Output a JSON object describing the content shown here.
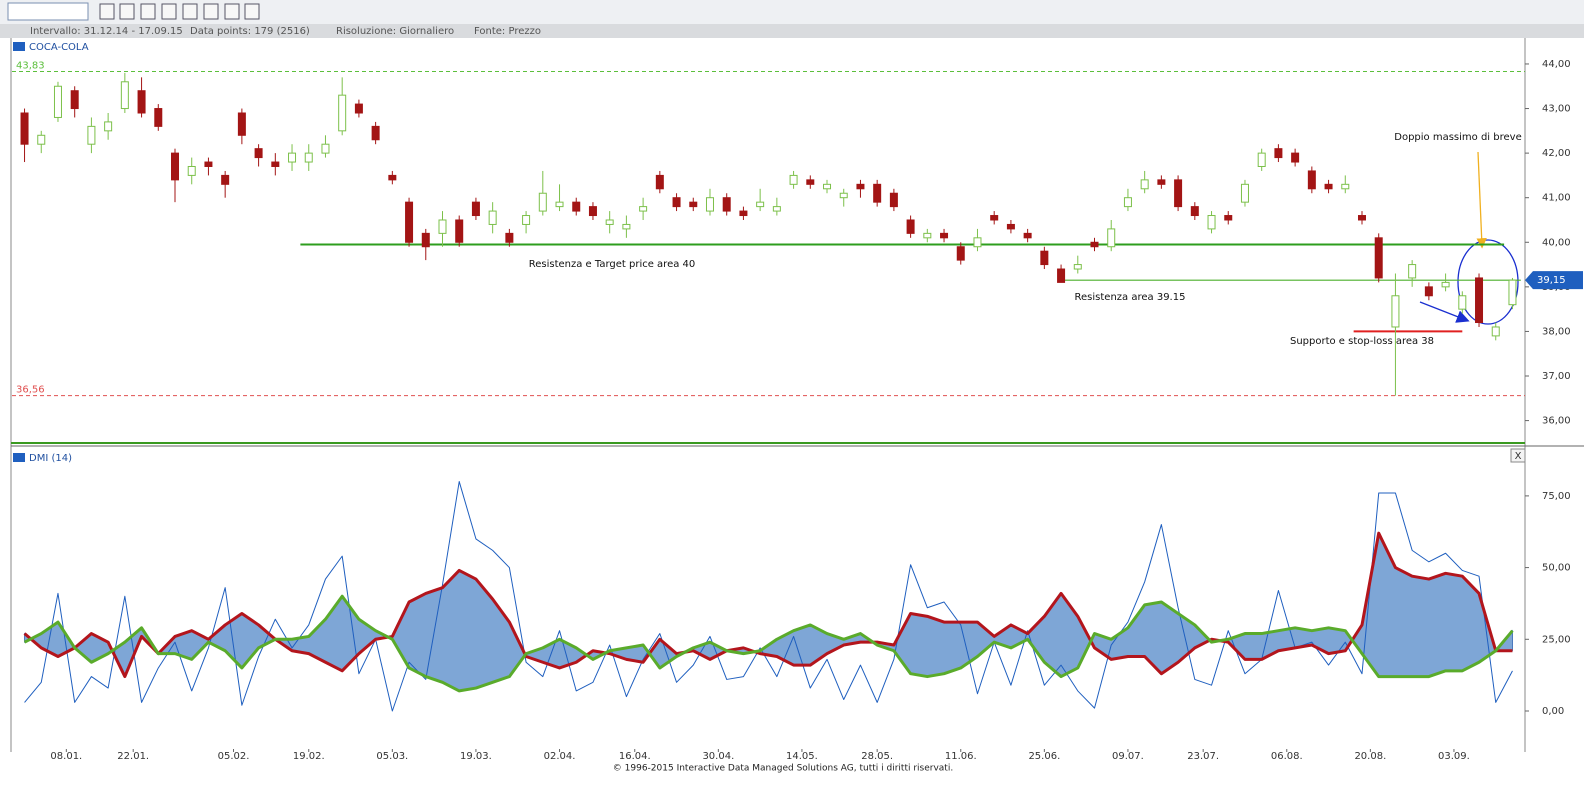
{
  "toolbar": {
    "info": [
      "Intervallo: 31.12.14 - 17.09.15",
      "Data points: 179 (2516)",
      "Risoluzione: Giornaliero",
      "Fonte: Prezzo"
    ]
  },
  "chart_data": [
    {
      "type": "candlestick",
      "legend": "COCA-COLA",
      "up_color": "#7cc04a",
      "down_color": "#a31515",
      "xlim": [
        -1.5,
        179.5
      ],
      "ylim": [
        35.43,
        44.56
      ],
      "yticks": [
        {
          "value": 36,
          "label": "36,00"
        },
        {
          "value": 37,
          "label": "37,00"
        },
        {
          "value": 38,
          "label": "38,00"
        },
        {
          "value": 39,
          "label": "39,00"
        },
        {
          "value": 40,
          "label": "40,00"
        },
        {
          "value": 41,
          "label": "41,00"
        },
        {
          "value": 42,
          "label": "42,00"
        },
        {
          "value": 43,
          "label": "43,00"
        },
        {
          "value": 44,
          "label": "44,00"
        }
      ],
      "x": [
        0,
        2,
        4,
        6,
        8,
        10,
        12,
        14,
        16,
        18,
        20,
        22,
        24,
        26,
        28,
        30,
        32,
        34,
        36,
        38,
        40,
        42,
        44,
        46,
        48,
        50,
        52,
        54,
        56,
        58,
        60,
        62,
        64,
        66,
        68,
        70,
        72,
        74,
        76,
        78,
        80,
        82,
        84,
        86,
        88,
        90,
        92,
        94,
        96,
        98,
        100,
        102,
        104,
        106,
        108,
        110,
        112,
        114,
        116,
        118,
        120,
        122,
        124,
        126,
        128,
        130,
        132,
        134,
        136,
        138,
        140,
        142,
        144,
        146,
        148,
        150,
        152,
        154,
        156,
        158,
        160,
        162,
        164,
        166,
        168,
        170,
        172,
        174,
        176,
        178
      ],
      "ohlc": [
        [
          42.9,
          43.0,
          41.8,
          42.2
        ],
        [
          42.2,
          42.5,
          42.0,
          42.4
        ],
        [
          42.8,
          43.6,
          42.7,
          43.5
        ],
        [
          43.4,
          43.5,
          42.8,
          43.0
        ],
        [
          42.2,
          42.8,
          42.0,
          42.6
        ],
        [
          42.5,
          42.9,
          42.3,
          42.7
        ],
        [
          43.0,
          43.8,
          42.9,
          43.6
        ],
        [
          43.4,
          43.7,
          42.8,
          42.9
        ],
        [
          43.0,
          43.1,
          42.5,
          42.6
        ],
        [
          42.0,
          42.1,
          40.9,
          41.4
        ],
        [
          41.5,
          41.9,
          41.3,
          41.7
        ],
        [
          41.8,
          41.9,
          41.5,
          41.7
        ],
        [
          41.5,
          41.6,
          41.0,
          41.3
        ],
        [
          42.9,
          43.0,
          42.2,
          42.4
        ],
        [
          42.1,
          42.2,
          41.7,
          41.9
        ],
        [
          41.8,
          42.0,
          41.5,
          41.7
        ],
        [
          41.8,
          42.2,
          41.6,
          42.0
        ],
        [
          41.8,
          42.2,
          41.6,
          42.0
        ],
        [
          42.0,
          42.4,
          41.9,
          42.2
        ],
        [
          42.5,
          43.7,
          42.4,
          43.3
        ],
        [
          43.1,
          43.2,
          42.8,
          42.9
        ],
        [
          42.6,
          42.7,
          42.2,
          42.3
        ],
        [
          41.5,
          41.6,
          41.3,
          41.4
        ],
        [
          40.9,
          41.0,
          39.9,
          40.0
        ],
        [
          40.2,
          40.3,
          39.6,
          39.9
        ],
        [
          40.2,
          40.7,
          39.9,
          40.5
        ],
        [
          40.5,
          40.6,
          39.9,
          40.0
        ],
        [
          40.9,
          41.0,
          40.5,
          40.6
        ],
        [
          40.4,
          40.9,
          40.2,
          40.7
        ],
        [
          40.2,
          40.3,
          39.9,
          40.0
        ],
        [
          40.4,
          40.7,
          40.2,
          40.6
        ],
        [
          40.7,
          41.6,
          40.6,
          41.1
        ],
        [
          40.8,
          41.3,
          40.7,
          40.9
        ],
        [
          40.9,
          41.0,
          40.6,
          40.7
        ],
        [
          40.8,
          40.9,
          40.5,
          40.6
        ],
        [
          40.4,
          40.7,
          40.2,
          40.5
        ],
        [
          40.3,
          40.6,
          40.1,
          40.4
        ],
        [
          40.7,
          41.0,
          40.5,
          40.8
        ],
        [
          41.5,
          41.6,
          41.1,
          41.2
        ],
        [
          41.0,
          41.1,
          40.7,
          40.8
        ],
        [
          40.9,
          41.0,
          40.7,
          40.8
        ],
        [
          40.7,
          41.2,
          40.6,
          41.0
        ],
        [
          41.0,
          41.1,
          40.6,
          40.7
        ],
        [
          40.7,
          40.8,
          40.5,
          40.6
        ],
        [
          40.8,
          41.2,
          40.7,
          40.9
        ],
        [
          40.7,
          41.0,
          40.6,
          40.8
        ],
        [
          41.3,
          41.6,
          41.2,
          41.5
        ],
        [
          41.4,
          41.5,
          41.2,
          41.3
        ],
        [
          41.2,
          41.4,
          41.1,
          41.3
        ],
        [
          41.0,
          41.2,
          40.8,
          41.1
        ],
        [
          41.3,
          41.4,
          41.0,
          41.2
        ],
        [
          41.3,
          41.4,
          40.8,
          40.9
        ],
        [
          41.1,
          41.2,
          40.7,
          40.8
        ],
        [
          40.5,
          40.6,
          40.1,
          40.2
        ],
        [
          40.1,
          40.3,
          40.0,
          40.2
        ],
        [
          40.2,
          40.3,
          40.0,
          40.1
        ],
        [
          39.9,
          40.0,
          39.5,
          39.6
        ],
        [
          39.9,
          40.3,
          39.8,
          40.1
        ],
        [
          40.6,
          40.7,
          40.4,
          40.5
        ],
        [
          40.4,
          40.5,
          40.2,
          40.3
        ],
        [
          40.2,
          40.3,
          40.0,
          40.1
        ],
        [
          39.8,
          39.9,
          39.4,
          39.5
        ],
        [
          39.4,
          39.5,
          39.1,
          39.1
        ],
        [
          39.4,
          39.7,
          39.3,
          39.5
        ],
        [
          40.0,
          40.1,
          39.8,
          39.9
        ],
        [
          39.9,
          40.5,
          39.8,
          40.3
        ],
        [
          40.8,
          41.2,
          40.7,
          41.0
        ],
        [
          41.2,
          41.6,
          41.1,
          41.4
        ],
        [
          41.4,
          41.5,
          41.2,
          41.3
        ],
        [
          41.4,
          41.5,
          40.7,
          40.8
        ],
        [
          40.8,
          40.9,
          40.5,
          40.6
        ],
        [
          40.3,
          40.7,
          40.2,
          40.6
        ],
        [
          40.6,
          40.7,
          40.4,
          40.5
        ],
        [
          40.9,
          41.4,
          40.8,
          41.3
        ],
        [
          41.7,
          42.1,
          41.6,
          42.0
        ],
        [
          42.1,
          42.2,
          41.8,
          41.9
        ],
        [
          42.0,
          42.1,
          41.7,
          41.8
        ],
        [
          41.6,
          41.7,
          41.1,
          41.2
        ],
        [
          41.3,
          41.4,
          41.1,
          41.2
        ],
        [
          41.2,
          41.5,
          41.1,
          41.3
        ],
        [
          40.6,
          40.7,
          40.4,
          40.5
        ],
        [
          40.1,
          40.2,
          39.1,
          39.2
        ],
        [
          38.1,
          39.3,
          36.56,
          38.8
        ],
        [
          39.2,
          39.6,
          39.0,
          39.5
        ],
        [
          39.0,
          39.1,
          38.7,
          38.8
        ],
        [
          39.0,
          39.3,
          38.9,
          39.1
        ],
        [
          38.5,
          38.9,
          38.4,
          38.8
        ],
        [
          39.2,
          39.3,
          38.1,
          38.2
        ],
        [
          37.9,
          38.2,
          37.8,
          38.1
        ],
        [
          38.6,
          39.2,
          38.5,
          39.15
        ]
      ],
      "reference_lines": [
        {
          "value": 43.83,
          "label": "43,83",
          "color": "#5cbf3c"
        },
        {
          "value": 36.56,
          "label": "36,56",
          "color": "#e05050"
        }
      ],
      "levels": [
        {
          "value": 39.95,
          "from": 33,
          "to": 177,
          "color": "#2e9e1e",
          "text": "Resistenza e Target price area 40"
        },
        {
          "value": 39.15,
          "from": 124,
          "to": 179,
          "color": "#4caf2c",
          "text": "Resistenza area 39.15"
        },
        {
          "value": 38.0,
          "from": 159,
          "to": 172,
          "color": "#e02020",
          "text": "Supporto e stop-loss area 38"
        }
      ],
      "annotation": "Doppio massimo di breve",
      "last_price": {
        "value": 39.15,
        "label": "39,15"
      }
    },
    {
      "type": "line",
      "legend": "DMI (14)",
      "close_label": "X",
      "fill_color": "#7ea6d6",
      "xlim": [
        -1.5,
        179.5
      ],
      "ylim": [
        -14.3,
        91.35
      ],
      "yticks": [
        {
          "value": 0,
          "label": "0,00"
        },
        {
          "value": 25,
          "label": "25,00"
        },
        {
          "value": 50,
          "label": "50,00"
        },
        {
          "value": 75,
          "label": "75,00"
        }
      ],
      "xticks": [
        {
          "value": 5,
          "label": "08.01."
        },
        {
          "value": 13,
          "label": "22.01."
        },
        {
          "value": 25,
          "label": "05.02."
        },
        {
          "value": 34,
          "label": "19.02."
        },
        {
          "value": 44,
          "label": "05.03."
        },
        {
          "value": 54,
          "label": "19.03."
        },
        {
          "value": 64,
          "label": "02.04."
        },
        {
          "value": 73,
          "label": "16.04."
        },
        {
          "value": 83,
          "label": "30.04."
        },
        {
          "value": 93,
          "label": "14.05."
        },
        {
          "value": 102,
          "label": "28.05."
        },
        {
          "value": 112,
          "label": "11.06."
        },
        {
          "value": 122,
          "label": "25.06."
        },
        {
          "value": 132,
          "label": "09.07."
        },
        {
          "value": 141,
          "label": "23.07."
        },
        {
          "value": 151,
          "label": "06.08."
        },
        {
          "value": 161,
          "label": "20.08."
        },
        {
          "value": 171,
          "label": "03.09."
        }
      ],
      "x": [
        0,
        2,
        4,
        6,
        8,
        10,
        12,
        14,
        16,
        18,
        20,
        22,
        24,
        26,
        28,
        30,
        32,
        34,
        36,
        38,
        40,
        42,
        44,
        46,
        48,
        50,
        52,
        54,
        56,
        58,
        60,
        62,
        64,
        66,
        68,
        70,
        72,
        74,
        76,
        78,
        80,
        82,
        84,
        86,
        88,
        90,
        92,
        94,
        96,
        98,
        100,
        102,
        104,
        106,
        108,
        110,
        112,
        114,
        116,
        118,
        120,
        122,
        124,
        126,
        128,
        130,
        132,
        134,
        136,
        138,
        140,
        142,
        144,
        146,
        148,
        150,
        152,
        154,
        156,
        158,
        160,
        162,
        164,
        166,
        168,
        170,
        172,
        174,
        176,
        178
      ],
      "series": [
        {
          "color": "#b3151c",
          "width": 3,
          "values": [
            27,
            22,
            19,
            22,
            27,
            24,
            12,
            26,
            20,
            26,
            28,
            25,
            30,
            34,
            30,
            25,
            21,
            20,
            17,
            14,
            20,
            25,
            26,
            38,
            41,
            43,
            49,
            46,
            39,
            31,
            19,
            17,
            15,
            17,
            21,
            20,
            18,
            17,
            25,
            20,
            21,
            18,
            21,
            22,
            20,
            19,
            16,
            16,
            20,
            23,
            24,
            24,
            23,
            34,
            33,
            31,
            31,
            31,
            26,
            30,
            27,
            33,
            41,
            33,
            22,
            18,
            19,
            19,
            13,
            17,
            22,
            25,
            24,
            18,
            18,
            21,
            22,
            23,
            20,
            21,
            30,
            62,
            50,
            47,
            46,
            48,
            47,
            41,
            21,
            21
          ]
        },
        {
          "color": "#5aab2b",
          "width": 3,
          "values": [
            24,
            27,
            31,
            22,
            17,
            20,
            24,
            29,
            20,
            20,
            18,
            24,
            21,
            15,
            22,
            25,
            25,
            26,
            32,
            40,
            32,
            28,
            25,
            15,
            12,
            10,
            7,
            8,
            10,
            12,
            20,
            22,
            25,
            22,
            18,
            21,
            22,
            23,
            15,
            19,
            22,
            24,
            21,
            20,
            21,
            25,
            28,
            30,
            27,
            25,
            27,
            23,
            21,
            13,
            12,
            13,
            15,
            19,
            24,
            22,
            25,
            17,
            12,
            15,
            27,
            25,
            29,
            37,
            38,
            34,
            30,
            24,
            25,
            27,
            27,
            28,
            29,
            28,
            29,
            28,
            20,
            12,
            12,
            12,
            12,
            14,
            14,
            17,
            21,
            28
          ]
        },
        {
          "color": "#1f5fbf",
          "width": 1,
          "values": [
            3,
            10,
            41,
            3,
            12,
            8,
            40,
            3,
            15,
            24,
            7,
            22,
            43,
            2,
            19,
            32,
            22,
            30,
            46,
            54,
            13,
            25,
            0,
            17,
            11,
            44,
            80,
            60,
            56,
            50,
            17,
            12,
            28,
            7,
            10,
            23,
            5,
            18,
            27,
            10,
            16,
            26,
            11,
            12,
            22,
            12,
            26,
            8,
            18,
            4,
            16,
            3,
            18,
            51,
            36,
            38,
            30,
            6,
            24,
            9,
            28,
            9,
            16,
            7,
            1,
            23,
            31,
            45,
            65,
            36,
            11,
            9,
            28,
            13,
            18,
            42,
            22,
            24,
            16,
            24,
            13,
            76,
            76,
            56,
            52,
            55,
            49,
            47,
            3,
            14
          ]
        }
      ]
    }
  ],
  "footer": "© 1996-2015 Interactive Data Managed Solutions AG, tutti i diritti riservati."
}
